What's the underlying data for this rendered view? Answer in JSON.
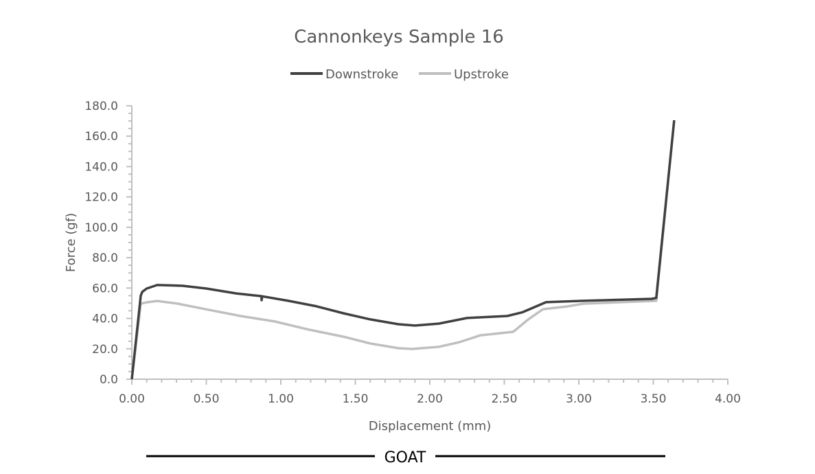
{
  "chart_data": {
    "type": "line",
    "title": "Cannonkeys Sample 16",
    "xlabel": "Displacement (mm)",
    "ylabel": "Force (gf)",
    "xlim": [
      0,
      4
    ],
    "ylim": [
      0,
      180
    ],
    "x_ticks": [
      "0.00",
      "0.50",
      "1.00",
      "1.50",
      "2.00",
      "2.50",
      "3.00",
      "3.50",
      "4.00"
    ],
    "y_ticks": [
      "0.0",
      "20.0",
      "40.0",
      "60.0",
      "80.0",
      "100.0",
      "120.0",
      "140.0",
      "160.0",
      "180.0"
    ],
    "legend_position": "top",
    "footer": "GOAT",
    "series": [
      {
        "name": "Downstroke",
        "color": "#404040",
        "points": [
          [
            0,
            0
          ],
          [
            0.06,
            55
          ],
          [
            0.07,
            57.5
          ],
          [
            0.1,
            59.7
          ],
          [
            0.17,
            62
          ],
          [
            0.34,
            61.5
          ],
          [
            0.5,
            59.7
          ],
          [
            0.7,
            56.5
          ],
          [
            0.87,
            54.7
          ],
          [
            0.871,
            52
          ],
          [
            0.875,
            54.6
          ],
          [
            1.05,
            51.6
          ],
          [
            1.24,
            48
          ],
          [
            1.42,
            43.4
          ],
          [
            1.6,
            39.4
          ],
          [
            1.79,
            36.2
          ],
          [
            1.9,
            35.3
          ],
          [
            2.06,
            36.6
          ],
          [
            2.25,
            40.3
          ],
          [
            2.52,
            41.6
          ],
          [
            2.62,
            44
          ],
          [
            2.78,
            50.7
          ],
          [
            3.03,
            51.6
          ],
          [
            3.49,
            52.9
          ],
          [
            3.52,
            53.5
          ],
          [
            3.64,
            170.5
          ]
        ]
      },
      {
        "name": "Upstroke",
        "color": "#bfbfbf",
        "points": [
          [
            0,
            0
          ],
          [
            0.06,
            49.7
          ],
          [
            0.1,
            50.6
          ],
          [
            0.17,
            51.5
          ],
          [
            0.31,
            49.7
          ],
          [
            0.5,
            46
          ],
          [
            0.73,
            41.6
          ],
          [
            0.96,
            38
          ],
          [
            1.19,
            32.6
          ],
          [
            1.42,
            28
          ],
          [
            1.6,
            23.5
          ],
          [
            1.79,
            20.4
          ],
          [
            1.88,
            19.9
          ],
          [
            2.06,
            21.3
          ],
          [
            2.2,
            24.4
          ],
          [
            2.34,
            28.9
          ],
          [
            2.56,
            31.2
          ],
          [
            2.66,
            39.3
          ],
          [
            2.76,
            46.1
          ],
          [
            2.92,
            47.9
          ],
          [
            3.03,
            49.7
          ],
          [
            3.52,
            51.6
          ],
          [
            3.64,
            170.5
          ]
        ]
      }
    ]
  }
}
